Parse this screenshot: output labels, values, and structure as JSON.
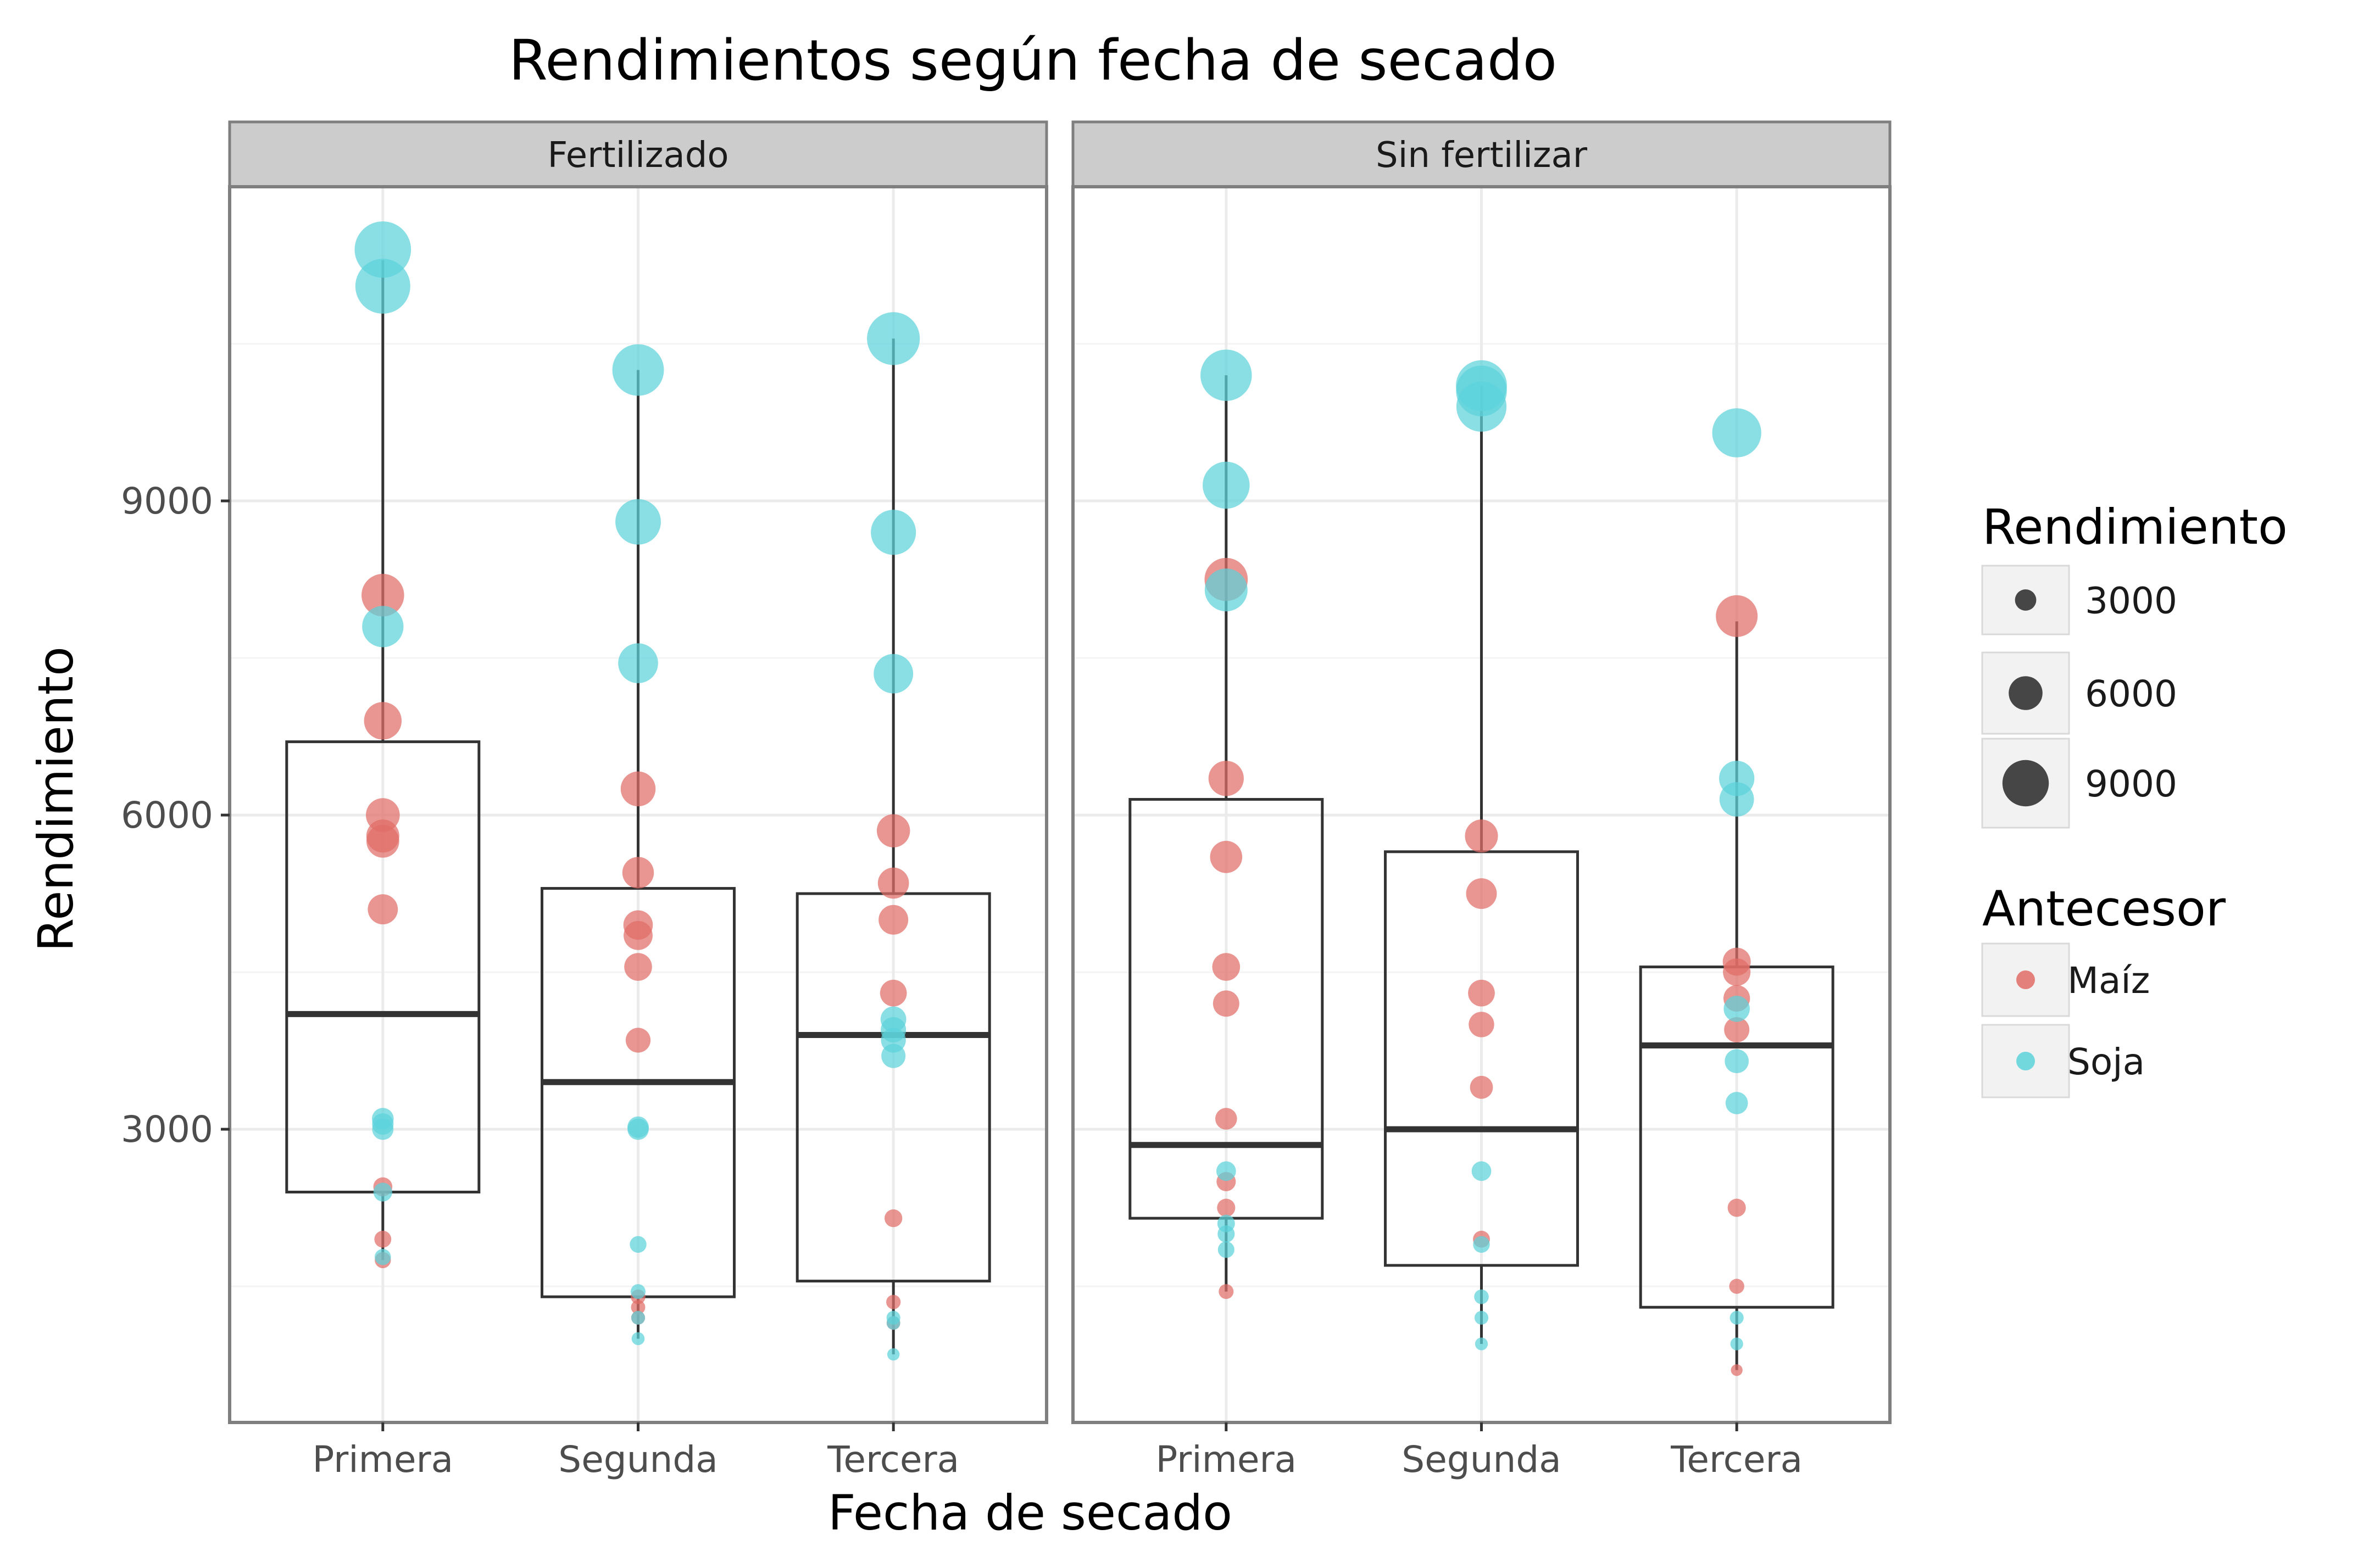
{
  "chart_data": {
    "type": "box-jitter",
    "title": "Rendimientos según fecha de secado",
    "xlabel": "Fecha de secado",
    "ylabel": "Rendimiento",
    "ylim": [
      200,
      12000
    ],
    "yticks": [
      3000,
      6000,
      9000
    ],
    "ytick_labels": [
      "3000",
      "6000",
      "9000"
    ],
    "categories": [
      "Primera",
      "Segunda",
      "Tercera"
    ],
    "grid": true,
    "colors": {
      "Maíz": "#e06c67",
      "Soja": "#5dd3db",
      "box": "#333333",
      "strip_bg": "#cccccc",
      "panel_border": "#7f7f7f",
      "grid": "#ebebeb"
    },
    "facets": [
      {
        "label": "Fertilizado",
        "boxes": [
          {
            "category": "Primera",
            "q1": 2400,
            "median": 4100,
            "q3": 6700,
            "whisker_low": 1750,
            "whisker_high": 11300
          },
          {
            "category": "Segunda",
            "q1": 1400,
            "median": 3450,
            "q3": 5300,
            "whisker_low": 1000,
            "whisker_high": 10250
          },
          {
            "category": "Tercera",
            "q1": 1550,
            "median": 3900,
            "q3": 5250,
            "whisker_low": 850,
            "whisker_high": 10550
          }
        ],
        "points": {
          "Primera": {
            "Maíz": [
              8100,
              6900,
              6000,
              5800,
              5750,
              5100,
              2450,
              1950,
              1750
            ],
            "Soja": [
              11400,
              11050,
              7800,
              3100,
              3050,
              3000,
              2400,
              1780
            ]
          },
          "Segunda": {
            "Maíz": [
              6250,
              5450,
              4950,
              4850,
              4550,
              3850,
              1400,
              1300,
              1200
            ],
            "Soja": [
              10250,
              8800,
              7450,
              3020,
              3000,
              1900,
              1450,
              1200,
              1000
            ]
          },
          "Tercera": {
            "Maíz": [
              5850,
              5350,
              5000,
              4300,
              2150,
              1350,
              1150
            ],
            "Soja": [
              10550,
              8700,
              7350,
              4050,
              3950,
              3850,
              3700,
              1200,
              1150,
              850
            ]
          }
        }
      },
      {
        "label": "Sin fertilizar",
        "boxes": [
          {
            "category": "Primera",
            "q1": 2150,
            "median": 2850,
            "q3": 6150,
            "whisker_low": 1450,
            "whisker_high": 10200
          },
          {
            "category": "Segunda",
            "q1": 1700,
            "median": 3000,
            "q3": 5650,
            "whisker_low": 950,
            "whisker_high": 10100
          },
          {
            "category": "Tercera",
            "q1": 1300,
            "median": 3800,
            "q3": 4550,
            "whisker_low": 700,
            "whisker_high": 7850
          }
        ],
        "points": {
          "Primera": {
            "Maíz": [
              8250,
              6350,
              5600,
              4550,
              4200,
              3100,
              2500,
              2250,
              1450
            ],
            "Soja": [
              10200,
              9150,
              8150,
              2600,
              2100,
              2000,
              1850
            ]
          },
          "Segunda": {
            "Maíz": [
              5800,
              5250,
              4300,
              4000,
              3400,
              1950
            ],
            "Soja": [
              10100,
              10050,
              9900,
              2600,
              1900,
              1400,
              1200,
              950
            ]
          },
          "Tercera": {
            "Maíz": [
              7900,
              4600,
              4500,
              4250,
              3950,
              2250,
              1500,
              700
            ],
            "Soja": [
              9650,
              6350,
              6150,
              4150,
              3650,
              3250,
              1200,
              950
            ]
          }
        }
      }
    ],
    "legend": {
      "size": {
        "title": "Rendimiento",
        "entries": [
          {
            "label": "3000",
            "value": 3000
          },
          {
            "label": "6000",
            "value": 6000
          },
          {
            "label": "9000",
            "value": 9000
          }
        ]
      },
      "color": {
        "title": "Antecesor",
        "entries": [
          {
            "label": "Maíz",
            "color": "#e06c67"
          },
          {
            "label": "Soja",
            "color": "#5dd3db"
          }
        ]
      },
      "placement": "right"
    }
  }
}
